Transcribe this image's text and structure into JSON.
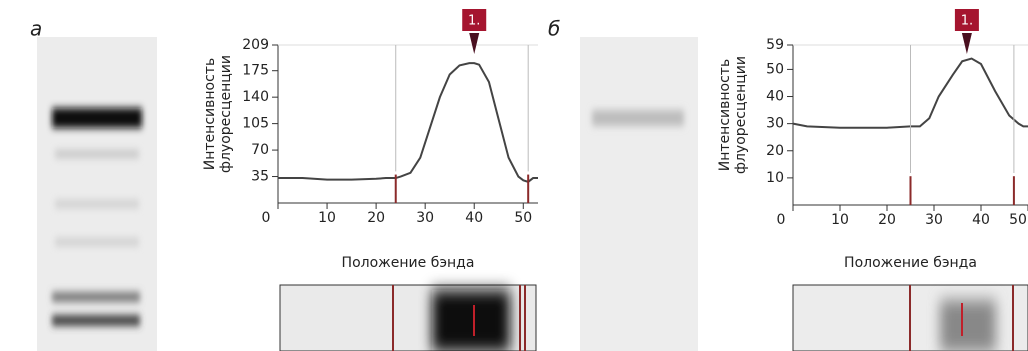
{
  "chart_data": [
    {
      "type": "line",
      "panel_label": "а",
      "ylabel": [
        "Интенсивность",
        "флуоресценции"
      ],
      "xlabel": "Положение бэнда",
      "xlim": [
        0,
        53
      ],
      "ylim": [
        0,
        209
      ],
      "xticks": [
        0,
        10,
        20,
        30,
        40,
        50
      ],
      "yticks": [
        35,
        70,
        105,
        140,
        175,
        209
      ],
      "x": [
        0,
        5,
        10,
        15,
        20,
        22,
        24,
        25,
        27,
        29,
        31,
        33,
        35,
        37,
        39,
        40,
        41,
        43,
        45,
        47,
        49,
        50,
        51,
        52,
        53
      ],
      "series": [
        {
          "color": "#444444",
          "values": [
            33,
            33,
            31,
            31,
            32,
            33,
            33,
            35,
            40,
            60,
            100,
            140,
            170,
            182,
            185,
            185,
            183,
            160,
            110,
            60,
            35,
            30,
            28,
            33,
            33
          ]
        }
      ],
      "markers": [
        24,
        51
      ],
      "annotations": [
        {
          "x": 40,
          "text": "1."
        }
      ]
    },
    {
      "type": "line",
      "panel_label": "б",
      "ylabel": [
        "Интенсивность",
        "флуоресценции"
      ],
      "xlabel": "Положение бэнда",
      "xlim": [
        0,
        50
      ],
      "ylim": [
        0,
        59
      ],
      "xticks": [
        0,
        10,
        20,
        30,
        40,
        50
      ],
      "yticks": [
        10,
        20,
        30,
        40,
        50,
        59
      ],
      "x": [
        0,
        3,
        10,
        20,
        25,
        26,
        27,
        29,
        31,
        34,
        36,
        38,
        40,
        43,
        46,
        48,
        49,
        50
      ],
      "series": [
        {
          "color": "#444444",
          "values": [
            30,
            29,
            28.5,
            28.5,
            29,
            29,
            29,
            32,
            40,
            48,
            53,
            54,
            52,
            42,
            33,
            30,
            29,
            29
          ]
        }
      ],
      "markers": [
        25,
        47
      ],
      "annotations": [
        {
          "x": 37,
          "text": "1."
        }
      ]
    }
  ]
}
